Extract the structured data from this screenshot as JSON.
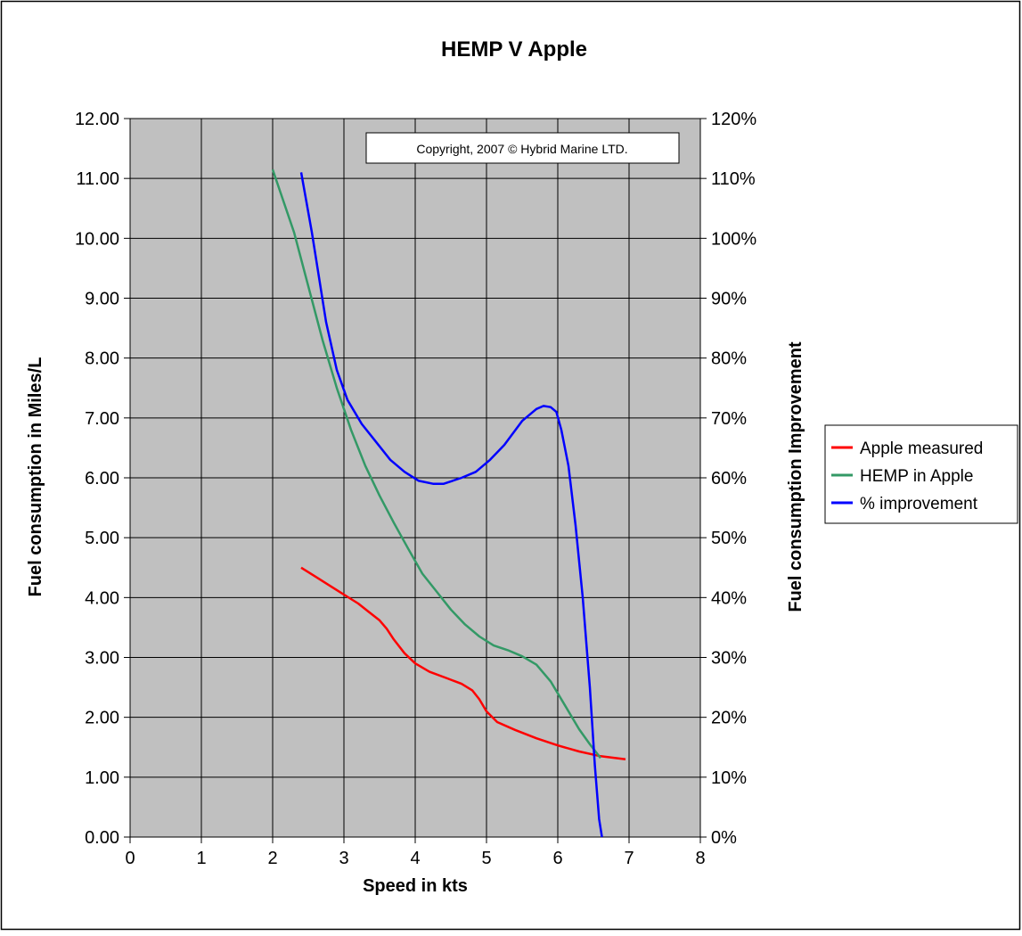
{
  "chart_data": {
    "type": "line",
    "title": "HEMP V Apple",
    "xlabel": "Speed in kts",
    "ylabel": "Fuel consumption in Miles/L",
    "y2label": "Fuel consumption Improvement",
    "annotation": "Copyright, 2007 © Hybrid Marine LTD.",
    "xlim": [
      0,
      8
    ],
    "ylim": [
      0,
      12
    ],
    "y2lim": [
      0,
      120
    ],
    "x_ticks": [
      "0",
      "1",
      "2",
      "3",
      "4",
      "5",
      "6",
      "7",
      "8"
    ],
    "y_ticks": [
      "0.00",
      "1.00",
      "2.00",
      "3.00",
      "4.00",
      "5.00",
      "6.00",
      "7.00",
      "8.00",
      "9.00",
      "10.00",
      "11.00",
      "12.00"
    ],
    "y2_ticks": [
      "0%",
      "10%",
      "20%",
      "30%",
      "40%",
      "50%",
      "60%",
      "70%",
      "80%",
      "90%",
      "100%",
      "110%",
      "120%"
    ],
    "grid": true,
    "plot_background": "#c0c0c0",
    "legend_position": "right",
    "series": [
      {
        "name": "Apple measured",
        "color": "#ff0000",
        "axis": "left",
        "x": [
          2.4,
          2.6,
          2.8,
          3.0,
          3.2,
          3.35,
          3.5,
          3.6,
          3.7,
          3.85,
          4.0,
          4.2,
          4.45,
          4.65,
          4.8,
          4.9,
          5.0,
          5.15,
          5.4,
          5.7,
          6.0,
          6.3,
          6.6,
          6.95
        ],
        "y": [
          4.5,
          4.35,
          4.2,
          4.05,
          3.9,
          3.76,
          3.62,
          3.48,
          3.3,
          3.07,
          2.9,
          2.76,
          2.65,
          2.56,
          2.45,
          2.3,
          2.1,
          1.92,
          1.79,
          1.65,
          1.53,
          1.43,
          1.35,
          1.3
        ]
      },
      {
        "name": "HEMP in Apple",
        "color": "#339966",
        "axis": "left",
        "x": [
          2.0,
          2.3,
          2.5,
          2.7,
          2.9,
          3.1,
          3.3,
          3.5,
          3.7,
          3.9,
          4.1,
          4.3,
          4.5,
          4.7,
          4.9,
          5.1,
          5.3,
          5.5,
          5.7,
          5.9,
          6.1,
          6.3,
          6.45,
          6.6
        ],
        "y": [
          11.15,
          10.1,
          9.2,
          8.3,
          7.5,
          6.8,
          6.2,
          5.7,
          5.25,
          4.82,
          4.4,
          4.1,
          3.8,
          3.55,
          3.35,
          3.2,
          3.12,
          3.02,
          2.88,
          2.6,
          2.2,
          1.8,
          1.55,
          1.32
        ]
      },
      {
        "name": "% improvement",
        "color": "#0000ff",
        "axis": "right",
        "x": [
          2.4,
          2.55,
          2.75,
          2.9,
          3.05,
          3.25,
          3.45,
          3.65,
          3.85,
          4.05,
          4.25,
          4.4,
          4.65,
          4.85,
          5.05,
          5.25,
          5.5,
          5.7,
          5.8,
          5.9,
          5.98,
          6.05,
          6.15,
          6.25,
          6.35,
          6.45,
          6.52,
          6.58,
          6.62
        ],
        "y": [
          111,
          101,
          86,
          78,
          73,
          69,
          66,
          63,
          61,
          59.5,
          59,
          59,
          60,
          61,
          63,
          65.5,
          69.5,
          71.5,
          72,
          71.8,
          71,
          68,
          62,
          52,
          40,
          25,
          12,
          3,
          0
        ]
      }
    ]
  }
}
